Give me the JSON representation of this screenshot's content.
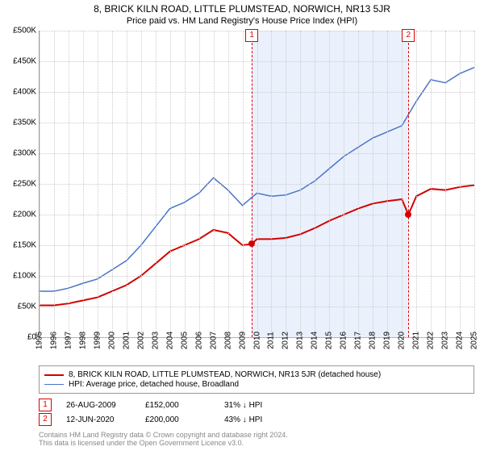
{
  "title": "8, BRICK KILN ROAD, LITTLE PLUMSTEAD, NORWICH, NR13 5JR",
  "subtitle": "Price paid vs. HM Land Registry's House Price Index (HPI)",
  "chart": {
    "type": "line",
    "background_color": "#ffffff",
    "grid_color": "#cccccc",
    "shade_color": "#eaf1fc",
    "y": {
      "min": 0,
      "max": 500000,
      "step": 50000,
      "labels": [
        "£0",
        "£50K",
        "£100K",
        "£150K",
        "£200K",
        "£250K",
        "£300K",
        "£350K",
        "£400K",
        "£450K",
        "£500K"
      ]
    },
    "x": {
      "min": 1995,
      "max": 2025,
      "labels": [
        "1995",
        "1996",
        "1997",
        "1998",
        "1999",
        "2000",
        "2001",
        "2002",
        "2003",
        "2004",
        "2005",
        "2006",
        "2007",
        "2008",
        "2009",
        "2010",
        "2011",
        "2012",
        "2013",
        "2014",
        "2015",
        "2016",
        "2017",
        "2018",
        "2019",
        "2020",
        "2021",
        "2022",
        "2023",
        "2024",
        "2025"
      ]
    },
    "series": [
      {
        "id": "property",
        "label": "8, BRICK KILN ROAD, LITTLE PLUMSTEAD, NORWICH, NR13 5JR (detached house)",
        "color": "#d40000",
        "width": 2,
        "data": [
          [
            1995,
            52000
          ],
          [
            1996,
            52000
          ],
          [
            1997,
            55000
          ],
          [
            1998,
            60000
          ],
          [
            1999,
            65000
          ],
          [
            2000,
            75000
          ],
          [
            2001,
            85000
          ],
          [
            2002,
            100000
          ],
          [
            2003,
            120000
          ],
          [
            2004,
            140000
          ],
          [
            2005,
            150000
          ],
          [
            2006,
            160000
          ],
          [
            2007,
            175000
          ],
          [
            2008,
            170000
          ],
          [
            2009,
            150000
          ],
          [
            2009.65,
            152000
          ],
          [
            2010,
            160000
          ],
          [
            2011,
            160000
          ],
          [
            2012,
            162000
          ],
          [
            2013,
            168000
          ],
          [
            2014,
            178000
          ],
          [
            2015,
            190000
          ],
          [
            2016,
            200000
          ],
          [
            2017,
            210000
          ],
          [
            2018,
            218000
          ],
          [
            2019,
            222000
          ],
          [
            2020,
            225000
          ],
          [
            2020.45,
            200000
          ],
          [
            2021,
            230000
          ],
          [
            2022,
            242000
          ],
          [
            2023,
            240000
          ],
          [
            2024,
            245000
          ],
          [
            2025,
            248000
          ]
        ]
      },
      {
        "id": "hpi",
        "label": "HPI: Average price, detached house, Broadland",
        "color": "#4a74c9",
        "width": 1.5,
        "data": [
          [
            1995,
            75000
          ],
          [
            1996,
            75000
          ],
          [
            1997,
            80000
          ],
          [
            1998,
            88000
          ],
          [
            1999,
            95000
          ],
          [
            2000,
            110000
          ],
          [
            2001,
            125000
          ],
          [
            2002,
            150000
          ],
          [
            2003,
            180000
          ],
          [
            2004,
            210000
          ],
          [
            2005,
            220000
          ],
          [
            2006,
            235000
          ],
          [
            2007,
            260000
          ],
          [
            2008,
            240000
          ],
          [
            2009,
            215000
          ],
          [
            2010,
            235000
          ],
          [
            2011,
            230000
          ],
          [
            2012,
            232000
          ],
          [
            2013,
            240000
          ],
          [
            2014,
            255000
          ],
          [
            2015,
            275000
          ],
          [
            2016,
            295000
          ],
          [
            2017,
            310000
          ],
          [
            2018,
            325000
          ],
          [
            2019,
            335000
          ],
          [
            2020,
            345000
          ],
          [
            2021,
            385000
          ],
          [
            2022,
            420000
          ],
          [
            2023,
            415000
          ],
          [
            2024,
            430000
          ],
          [
            2025,
            440000
          ]
        ]
      }
    ],
    "markers": [
      {
        "n": "1",
        "year": 2009.65,
        "price": 152000
      },
      {
        "n": "2",
        "year": 2020.45,
        "price": 200000
      }
    ],
    "shade_range": [
      2009.65,
      2020.45
    ]
  },
  "sales": [
    {
      "n": "1",
      "date": "26-AUG-2009",
      "price": "£152,000",
      "vs_hpi": "31% ↓ HPI"
    },
    {
      "n": "2",
      "date": "12-JUN-2020",
      "price": "£200,000",
      "vs_hpi": "43% ↓ HPI"
    }
  ],
  "footer_line1": "Contains HM Land Registry data © Crown copyright and database right 2024.",
  "footer_line2": "This data is licensed under the Open Government Licence v3.0."
}
